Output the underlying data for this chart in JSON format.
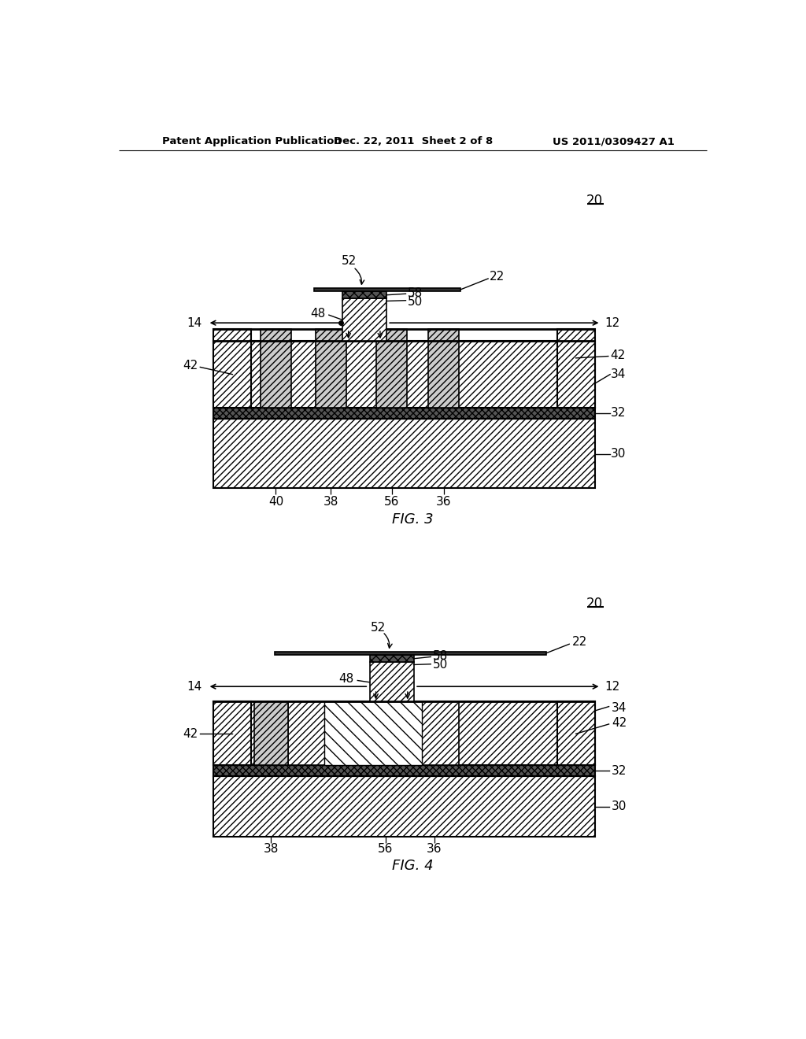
{
  "header_left": "Patent Application Publication",
  "header_mid": "Dec. 22, 2011  Sheet 2 of 8",
  "header_right": "US 2011/0309427 A1",
  "fig3_label": "FIG. 3",
  "fig4_label": "FIG. 4",
  "bg_color": "#ffffff"
}
